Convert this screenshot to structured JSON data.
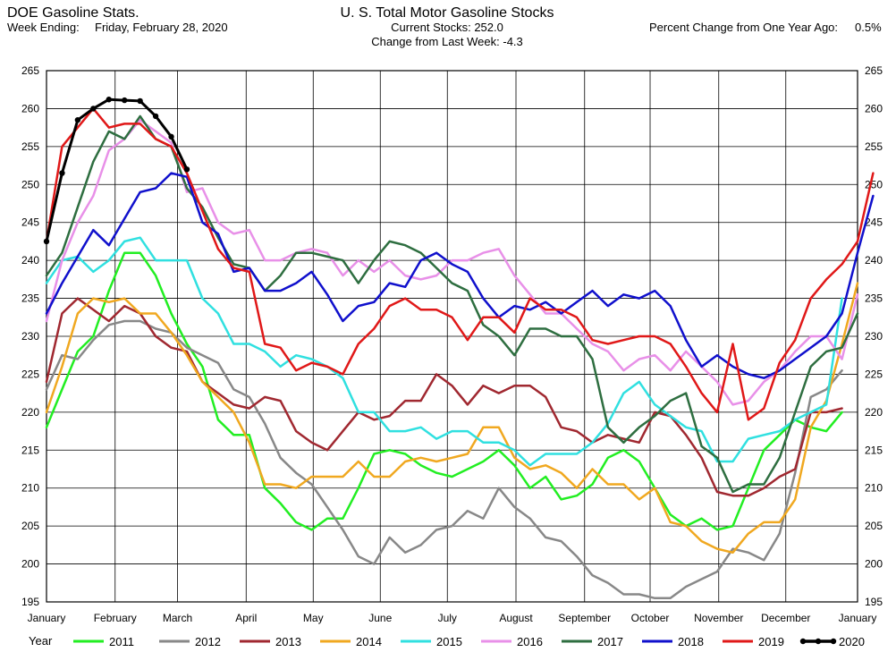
{
  "header": {
    "app_title": "DOE Gasoline Stats.",
    "week_ending_label": "Week Ending:",
    "week_ending_value": "Friday, February 28, 2020",
    "chart_title": "U. S. Total Motor Gasoline Stocks",
    "current_stocks": "Current Stocks: 252.0",
    "change_last_week": "Change from Last Week: -4.3",
    "pct_change_label": "Percent Change from One Year Ago:",
    "pct_change_value": "0.5%"
  },
  "legend": {
    "title": "Year"
  },
  "chart_data": {
    "type": "line",
    "title": "U. S. Total Motor Gasoline Stocks",
    "xlabel": "",
    "ylabel": "",
    "x_unit": "week of year",
    "xlim": [
      1,
      53
    ],
    "ylim": [
      195,
      265
    ],
    "y_ticks": [
      195,
      200,
      205,
      210,
      215,
      220,
      225,
      230,
      235,
      240,
      245,
      250,
      255,
      260,
      265
    ],
    "month_ticks": [
      {
        "label": "January",
        "week": 1
      },
      {
        "label": "February",
        "week": 5.4
      },
      {
        "label": "March",
        "week": 9.4
      },
      {
        "label": "April",
        "week": 13.8
      },
      {
        "label": "May",
        "week": 18.1
      },
      {
        "label": "June",
        "week": 22.4
      },
      {
        "label": "July",
        "week": 26.7
      },
      {
        "label": "August",
        "week": 31.1
      },
      {
        "label": "September",
        "week": 35.5
      },
      {
        "label": "October",
        "week": 39.7
      },
      {
        "label": "November",
        "week": 44.1
      },
      {
        "label": "December",
        "week": 48.4
      },
      {
        "label": "January",
        "week": 53
      }
    ],
    "grid": true,
    "legend_position": "bottom",
    "series": [
      {
        "name": "2011",
        "color": "#22ee22",
        "width": 2.5,
        "values": [
          218,
          223,
          228,
          230,
          236,
          241,
          241,
          238,
          233,
          229,
          226,
          219,
          217,
          217,
          210,
          208,
          205.5,
          204.5,
          206,
          206,
          210,
          214.5,
          215,
          214.5,
          213,
          212,
          211.5,
          212.5,
          213.5,
          215,
          213,
          210,
          211.5,
          208.5,
          209,
          210.5,
          214,
          215,
          213.5,
          210,
          206.5,
          205,
          206,
          204.5,
          205,
          210,
          215,
          217,
          219,
          218,
          217.5,
          220
        ]
      },
      {
        "name": "2012",
        "color": "#888888",
        "width": 2.5,
        "values": [
          223,
          227.5,
          227,
          229.5,
          231.5,
          232,
          232,
          231,
          230.5,
          228.5,
          227.5,
          226.5,
          223,
          222,
          218.5,
          214,
          212,
          210.5,
          207.5,
          204.5,
          201,
          200,
          203.5,
          201.5,
          202.5,
          204.5,
          205,
          207,
          206,
          210,
          207.5,
          206,
          203.5,
          203,
          201,
          198.5,
          197.5,
          196,
          196,
          195.5,
          195.5,
          197,
          198,
          199,
          202,
          201.5,
          200.5,
          204,
          212,
          222,
          223,
          225.5
        ]
      },
      {
        "name": "2013",
        "color": "#a02830",
        "width": 2.5,
        "values": [
          224,
          233,
          235,
          233.5,
          232,
          234,
          233,
          230,
          228.5,
          228,
          224,
          222.5,
          221,
          220.5,
          222,
          221.5,
          217.5,
          216,
          215,
          217.5,
          220,
          219,
          219.5,
          221.5,
          221.5,
          225,
          223.5,
          221,
          223.5,
          222.5,
          223.5,
          223.5,
          222,
          218,
          217.5,
          216,
          217,
          216.5,
          216,
          220,
          219.5,
          217,
          214,
          209.5,
          209,
          209,
          210,
          211.5,
          212.5,
          220,
          220,
          220.5
        ]
      },
      {
        "name": "2014",
        "color": "#f0a820",
        "width": 2.5,
        "values": [
          220,
          226,
          233,
          235,
          234.5,
          235,
          233,
          233,
          230.5,
          227.5,
          224,
          222,
          220,
          216,
          210.5,
          210.5,
          210,
          211.5,
          211.5,
          211.5,
          213.5,
          211.5,
          211.5,
          213.5,
          214,
          213.5,
          214,
          214.5,
          218,
          218,
          214,
          212.5,
          213,
          212,
          210,
          212.5,
          210.5,
          210.5,
          208.5,
          210,
          205.5,
          205,
          203,
          202,
          201.5,
          204,
          205.5,
          205.5,
          208.5,
          218,
          221.5,
          229,
          237
        ]
      },
      {
        "name": "2015",
        "color": "#30e0e0",
        "width": 2.5,
        "values": [
          237,
          240,
          240.5,
          238.5,
          240,
          242.5,
          243,
          240,
          240,
          240,
          235,
          233,
          229,
          229,
          228,
          226,
          227.5,
          227,
          226,
          224.5,
          220,
          220,
          217.5,
          217.5,
          218,
          216.5,
          217.5,
          217.5,
          216,
          216,
          215,
          213,
          214.5,
          214.5,
          214.5,
          216,
          218.5,
          222.5,
          224,
          221,
          219.5,
          218,
          217.5,
          213.5,
          213.5,
          216.5,
          217,
          217.5,
          219,
          220,
          221,
          235
        ]
      },
      {
        "name": "2016",
        "color": "#e890e8",
        "width": 2.5,
        "values": [
          232,
          240,
          245,
          248.5,
          254.5,
          256,
          258.5,
          257,
          255.5,
          249,
          249.5,
          245,
          243.5,
          244,
          240,
          240,
          241,
          241.5,
          241,
          238,
          240,
          238.5,
          240,
          238,
          237.5,
          238,
          240,
          240,
          241,
          241.5,
          238,
          235.5,
          233,
          233,
          231,
          229,
          228,
          225.5,
          227,
          227.5,
          225.5,
          228,
          226,
          224,
          221,
          221.5,
          224,
          225.5,
          228,
          230,
          230,
          227,
          235.5
        ]
      },
      {
        "name": "2017",
        "color": "#2e6e40",
        "width": 2.5,
        "values": [
          238,
          241,
          247,
          253,
          257,
          256,
          259,
          256,
          255,
          249.5,
          247,
          243,
          239.5,
          239,
          236,
          238,
          241,
          241,
          240.5,
          240,
          237,
          240,
          242.5,
          242,
          241,
          239,
          237,
          236,
          231.5,
          230,
          227.5,
          231,
          231,
          230,
          230,
          227,
          218,
          216,
          218,
          219.5,
          221.5,
          222.5,
          215.5,
          214,
          209.5,
          210.5,
          210.5,
          214,
          220,
          226,
          228,
          228.5,
          233
        ]
      },
      {
        "name": "2018",
        "color": "#1010cc",
        "width": 2.5,
        "values": [
          233,
          237,
          240.5,
          244,
          242,
          245.5,
          249,
          249.5,
          251.5,
          251,
          245,
          243.5,
          238.5,
          239,
          236,
          236,
          237,
          238.5,
          235.5,
          232,
          234,
          234.5,
          237,
          236.5,
          240,
          241,
          239.5,
          238.5,
          235,
          232.5,
          234,
          233.5,
          234.5,
          233,
          234.5,
          236,
          234,
          235.5,
          235,
          236,
          234,
          229.5,
          226,
          227.5,
          226,
          225,
          224.5,
          225.5,
          227,
          228.5,
          230,
          233,
          241,
          248.5
        ]
      },
      {
        "name": "2019",
        "color": "#e01818",
        "width": 2.5,
        "values": [
          242.5,
          255,
          257.5,
          260,
          257.5,
          258,
          258,
          256,
          255,
          251.5,
          246.5,
          241.5,
          239,
          238.5,
          229,
          228.5,
          225.5,
          226.5,
          226,
          225,
          229,
          231,
          234,
          235,
          233.5,
          233.5,
          232.5,
          229.5,
          232.5,
          232.5,
          230.5,
          235,
          233.5,
          233.5,
          232.5,
          229.5,
          229,
          229.5,
          230,
          230,
          229,
          226,
          222.5,
          220,
          229,
          219,
          220.5,
          226.5,
          229.5,
          235,
          237.5,
          239.5,
          242.5,
          251.5
        ]
      },
      {
        "name": "2020",
        "color": "#000000",
        "width": 3,
        "markers": true,
        "values": [
          242.5,
          251.5,
          258.5,
          260,
          261.2,
          261.1,
          261,
          259,
          256.3,
          252
        ]
      }
    ]
  }
}
